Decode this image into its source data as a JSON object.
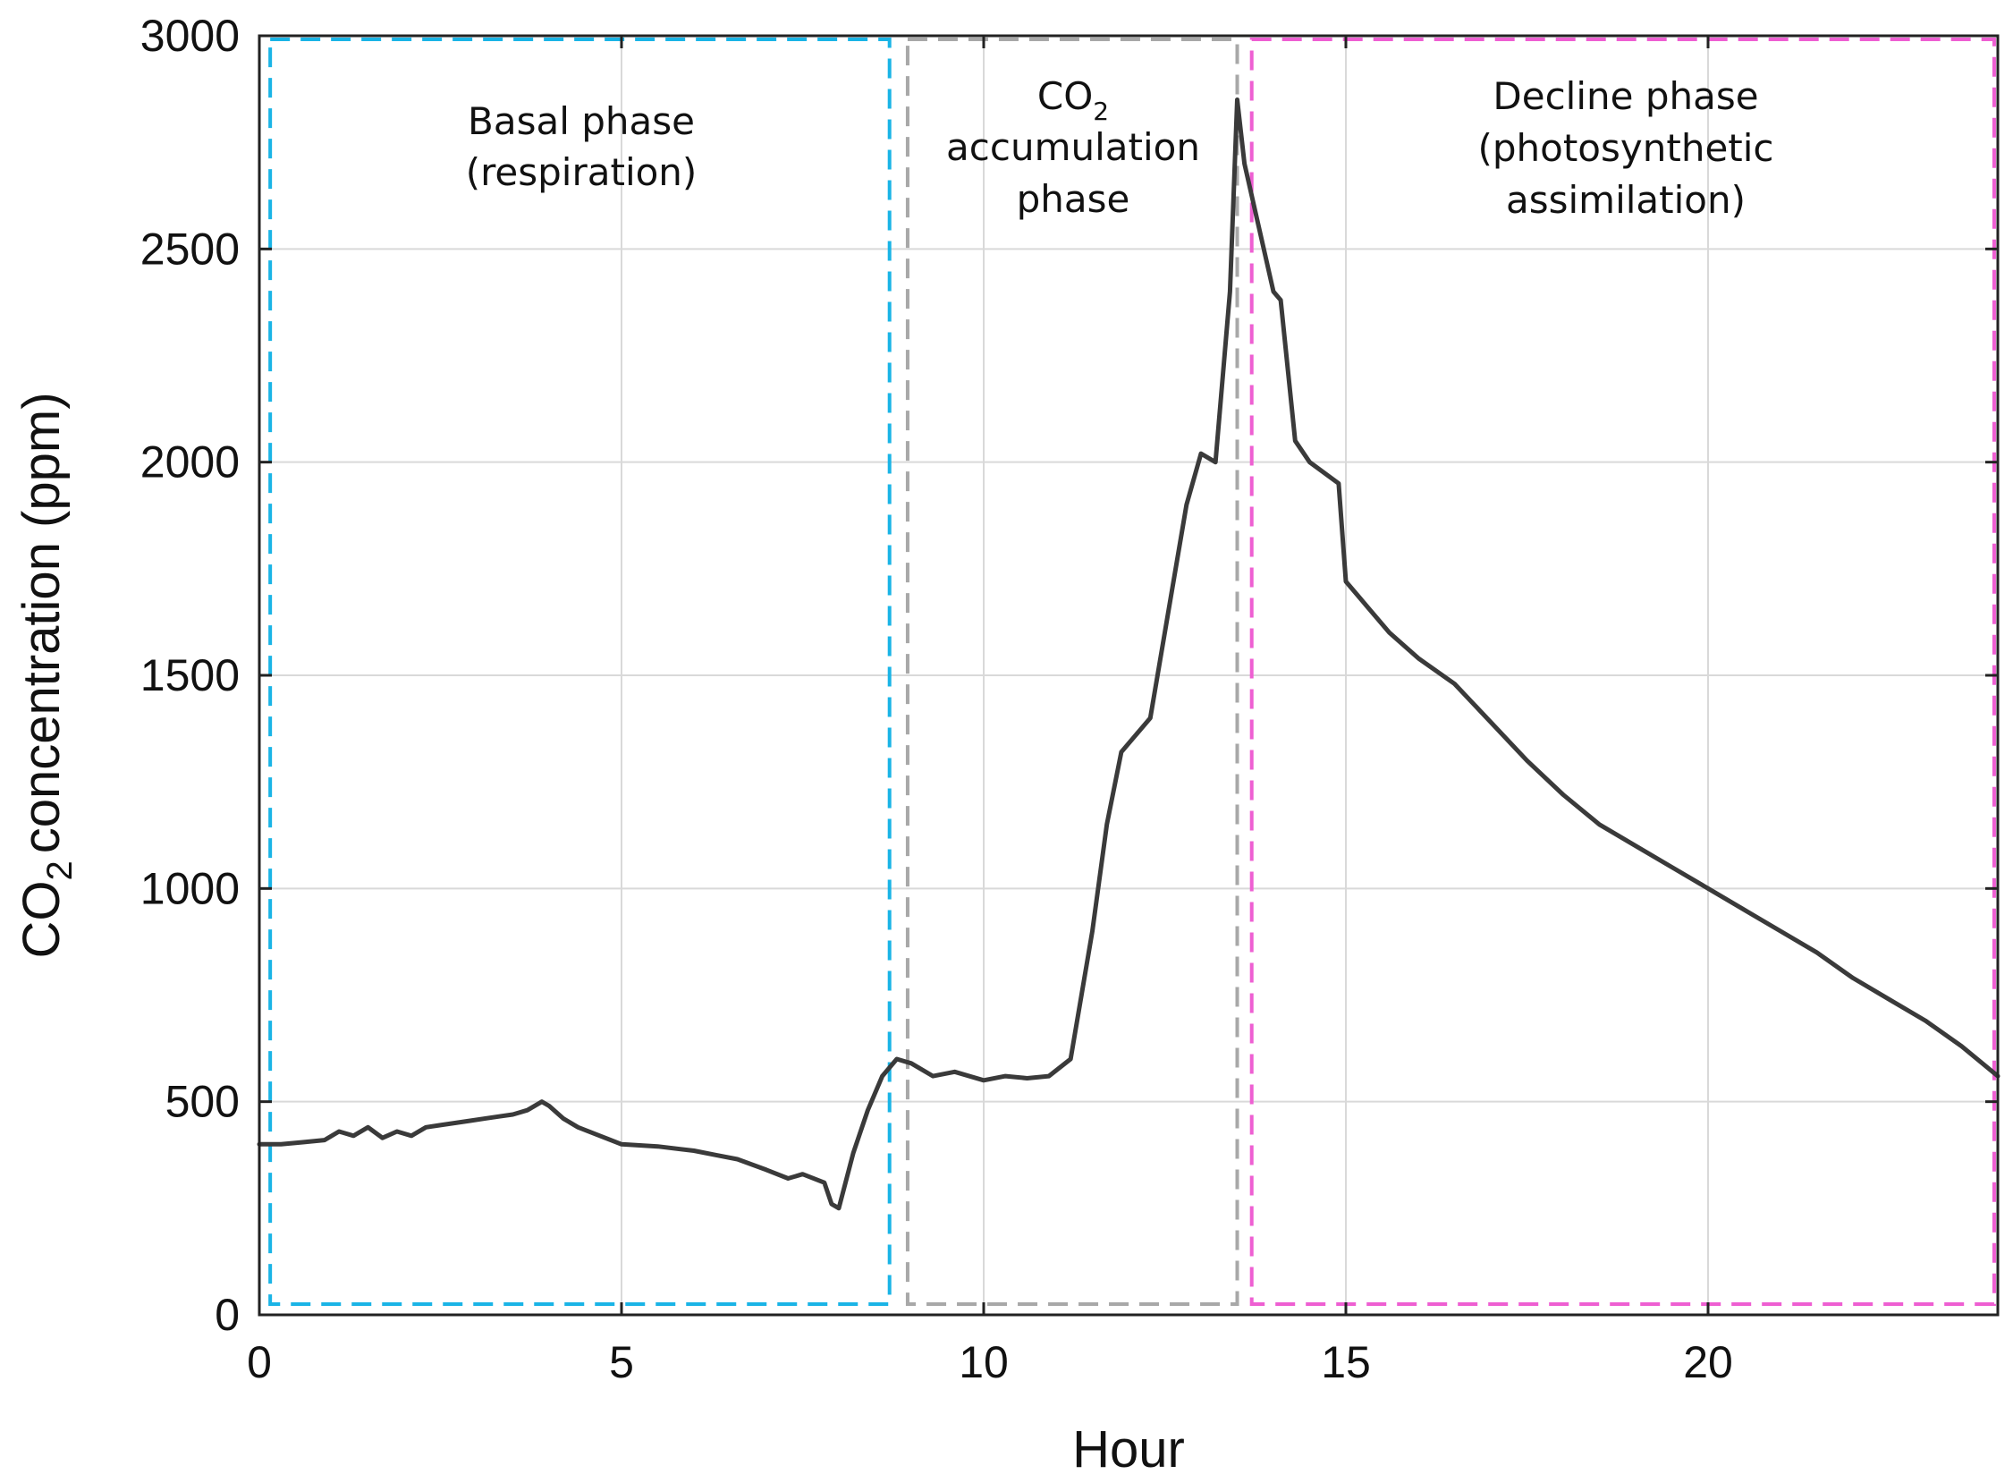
{
  "chart_data": {
    "type": "line",
    "title": "",
    "xlabel": "Hour",
    "ylabel": "concentration (ppm)",
    "ylabel_prefix": "CO",
    "ylabel_subscript": "2",
    "xlim": [
      0,
      24
    ],
    "ylim": [
      0,
      3000
    ],
    "xticks": [
      0,
      5,
      10,
      15,
      20
    ],
    "yticks": [
      0,
      500,
      1000,
      1500,
      2000,
      2500,
      3000
    ],
    "grid": true,
    "colors": {
      "line": "#3a3a3a",
      "basal": "#1ab4e6",
      "accumulation": "#a8a8a8",
      "decline": "#ee5fd2",
      "grid": "#d9d9d9"
    },
    "phases": [
      {
        "name": "basal",
        "x_start": 0.15,
        "x_end": 8.7,
        "label_lines": [
          "Basal phase",
          "(respiration)"
        ]
      },
      {
        "name": "accumulation",
        "x_start": 8.95,
        "x_end": 13.5,
        "label_co2": "CO",
        "label_co2_sub": "2",
        "label_lines": [
          "accumulation",
          "phase"
        ]
      },
      {
        "name": "decline",
        "x_start": 13.7,
        "x_end": 23.95,
        "label_lines": [
          "Decline phase",
          "(photosynthetic",
          "assimilation)"
        ]
      }
    ],
    "series": [
      {
        "name": "CO2 concentration",
        "x": [
          0,
          0.3,
          0.6,
          0.9,
          1.1,
          1.3,
          1.5,
          1.7,
          1.9,
          2.1,
          2.3,
          2.5,
          2.7,
          2.9,
          3.1,
          3.3,
          3.5,
          3.7,
          3.9,
          4.0,
          4.2,
          4.4,
          4.7,
          5.0,
          5.5,
          6.0,
          6.3,
          6.6,
          7.0,
          7.3,
          7.5,
          7.8,
          7.9,
          8.0,
          8.2,
          8.4,
          8.6,
          8.8,
          9.0,
          9.3,
          9.6,
          10.0,
          10.3,
          10.6,
          10.9,
          11.2,
          11.3,
          11.5,
          11.7,
          11.9,
          12.1,
          12.3,
          12.5,
          12.8,
          13.0,
          13.2,
          13.4,
          13.5,
          13.6,
          13.8,
          14.0,
          14.1,
          14.3,
          14.5,
          14.9,
          15.0,
          15.3,
          15.6,
          16.0,
          16.5,
          17.0,
          17.5,
          18.0,
          18.5,
          19.0,
          19.5,
          20.0,
          20.5,
          21.0,
          21.5,
          22.0,
          22.5,
          23.0,
          23.5,
          24.0
        ],
        "values": [
          400,
          400,
          405,
          410,
          430,
          420,
          440,
          415,
          430,
          420,
          440,
          445,
          450,
          455,
          460,
          465,
          470,
          480,
          500,
          490,
          460,
          440,
          420,
          400,
          395,
          385,
          375,
          365,
          340,
          320,
          330,
          310,
          260,
          250,
          380,
          480,
          560,
          600,
          590,
          560,
          570,
          550,
          560,
          555,
          560,
          600,
          700,
          900,
          1150,
          1320,
          1360,
          1400,
          1600,
          1900,
          2020,
          2000,
          2400,
          2850,
          2700,
          2550,
          2400,
          2380,
          2050,
          2000,
          1950,
          1720,
          1660,
          1600,
          1540,
          1480,
          1390,
          1300,
          1220,
          1150,
          1100,
          1050,
          1000,
          950,
          900,
          850,
          790,
          740,
          690,
          630,
          560
        ]
      }
    ]
  }
}
